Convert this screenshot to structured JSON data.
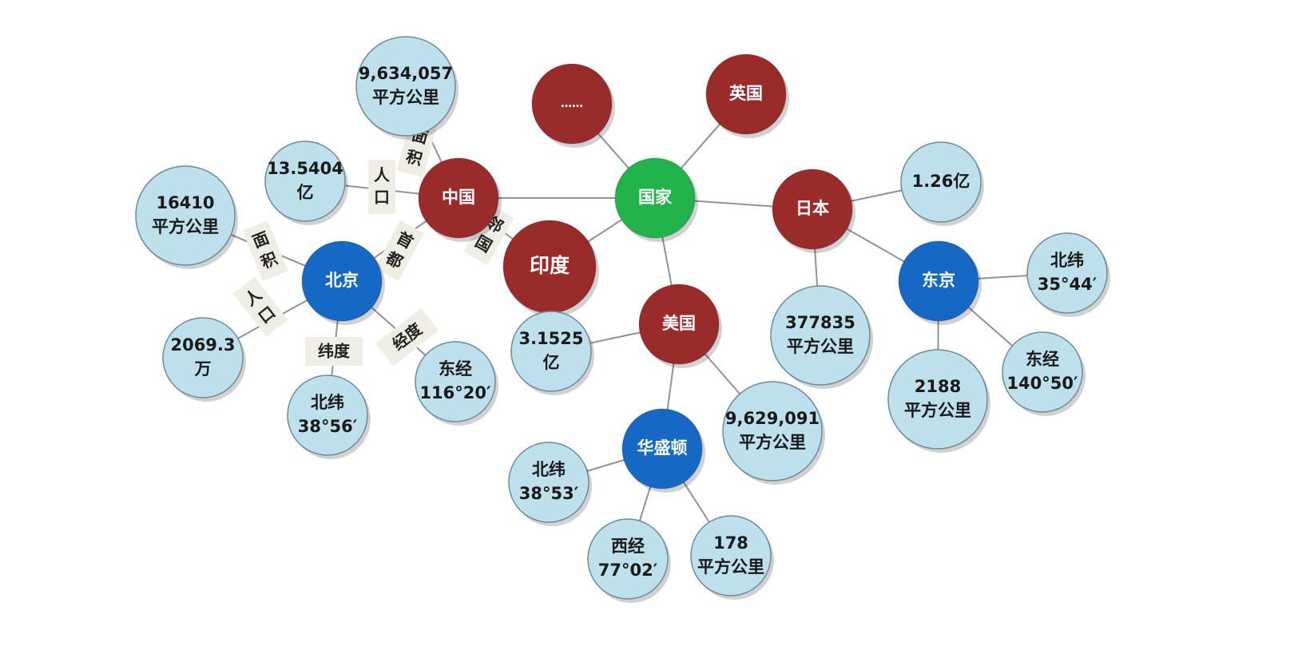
{
  "colors": {
    "entity_red": "#9a2b2b",
    "center_green": "#22b24c",
    "city_blue": "#1568c4",
    "attribute_blue": "#bde0ec",
    "attribute_border": "#6e8a98",
    "edge_gray": "#8e9396"
  },
  "nodes": [
    {
      "id": "guojia",
      "kind": "center",
      "lines": [
        "国家"
      ]
    },
    {
      "id": "zhongguo",
      "kind": "country",
      "lines": [
        "中国"
      ]
    },
    {
      "id": "yindu",
      "kind": "country",
      "lines": [
        "印度"
      ]
    },
    {
      "id": "yingguo",
      "kind": "country",
      "lines": [
        "英国"
      ]
    },
    {
      "id": "more",
      "kind": "country",
      "lines": [
        "……"
      ]
    },
    {
      "id": "riben",
      "kind": "country",
      "lines": [
        "日本"
      ]
    },
    {
      "id": "meiguo",
      "kind": "country",
      "lines": [
        "美国"
      ]
    },
    {
      "id": "beijing",
      "kind": "city",
      "lines": [
        "北京"
      ]
    },
    {
      "id": "dongjing",
      "kind": "city",
      "lines": [
        "东京"
      ]
    },
    {
      "id": "huashengdun",
      "kind": "city",
      "lines": [
        "华盛顿"
      ]
    },
    {
      "id": "cn-area",
      "kind": "attribute",
      "lines": [
        "9,634,057",
        "平方公里"
      ]
    },
    {
      "id": "cn-pop",
      "kind": "attribute",
      "lines": [
        "13.5404",
        "亿"
      ]
    },
    {
      "id": "bj-area",
      "kind": "attribute",
      "lines": [
        "16410",
        "平方公里"
      ]
    },
    {
      "id": "bj-pop",
      "kind": "attribute",
      "lines": [
        "2069.3",
        "万"
      ]
    },
    {
      "id": "bj-lat",
      "kind": "attribute",
      "lines": [
        "北纬",
        "38°56′"
      ]
    },
    {
      "id": "bj-lon",
      "kind": "attribute",
      "lines": [
        "东经",
        "116°20′"
      ]
    },
    {
      "id": "jp-pop",
      "kind": "attribute",
      "lines": [
        "1.26亿"
      ]
    },
    {
      "id": "jp-area",
      "kind": "attribute",
      "lines": [
        "377835",
        "平方公里"
      ]
    },
    {
      "id": "tk-lat",
      "kind": "attribute",
      "lines": [
        "北纬",
        "35°44′"
      ]
    },
    {
      "id": "tk-lon",
      "kind": "attribute",
      "lines": [
        "东经",
        "140°50′"
      ]
    },
    {
      "id": "tk-area",
      "kind": "attribute",
      "lines": [
        "2188",
        "平方公里"
      ]
    },
    {
      "id": "us-pop",
      "kind": "attribute",
      "lines": [
        "3.1525",
        "亿"
      ]
    },
    {
      "id": "us-area",
      "kind": "attribute",
      "lines": [
        "9,629,091",
        "平方公里"
      ]
    },
    {
      "id": "dc-lat",
      "kind": "attribute",
      "lines": [
        "北纬",
        "38°53′"
      ]
    },
    {
      "id": "dc-lon",
      "kind": "attribute",
      "lines": [
        "西经",
        "77°02′"
      ]
    },
    {
      "id": "dc-area",
      "kind": "attribute",
      "lines": [
        "178",
        "平方公里"
      ]
    }
  ],
  "edges": [
    {
      "from": "guojia",
      "to": "zhongguo"
    },
    {
      "from": "guojia",
      "to": "yindu"
    },
    {
      "from": "guojia",
      "to": "more"
    },
    {
      "from": "guojia",
      "to": "yingguo"
    },
    {
      "from": "guojia",
      "to": "riben"
    },
    {
      "from": "guojia",
      "to": "meiguo"
    },
    {
      "from": "zhongguo",
      "to": "yindu",
      "label": "邻国"
    },
    {
      "from": "zhongguo",
      "to": "cn-area",
      "label": "面积"
    },
    {
      "from": "zhongguo",
      "to": "cn-pop",
      "label": "人口"
    },
    {
      "from": "zhongguo",
      "to": "beijing",
      "label": "首都"
    },
    {
      "from": "beijing",
      "to": "bj-area",
      "label": "面积"
    },
    {
      "from": "beijing",
      "to": "bj-pop",
      "label": "人口"
    },
    {
      "from": "beijing",
      "to": "bj-lat",
      "label": "纬度"
    },
    {
      "from": "beijing",
      "to": "bj-lon",
      "label": "经度"
    },
    {
      "from": "riben",
      "to": "jp-pop"
    },
    {
      "from": "riben",
      "to": "jp-area"
    },
    {
      "from": "riben",
      "to": "dongjing"
    },
    {
      "from": "dongjing",
      "to": "tk-lat"
    },
    {
      "from": "dongjing",
      "to": "tk-lon"
    },
    {
      "from": "dongjing",
      "to": "tk-area"
    },
    {
      "from": "meiguo",
      "to": "us-pop"
    },
    {
      "from": "meiguo",
      "to": "us-area"
    },
    {
      "from": "meiguo",
      "to": "huashengdun"
    },
    {
      "from": "huashengdun",
      "to": "dc-lat"
    },
    {
      "from": "huashengdun",
      "to": "dc-lon"
    },
    {
      "from": "huashengdun",
      "to": "dc-area"
    }
  ]
}
